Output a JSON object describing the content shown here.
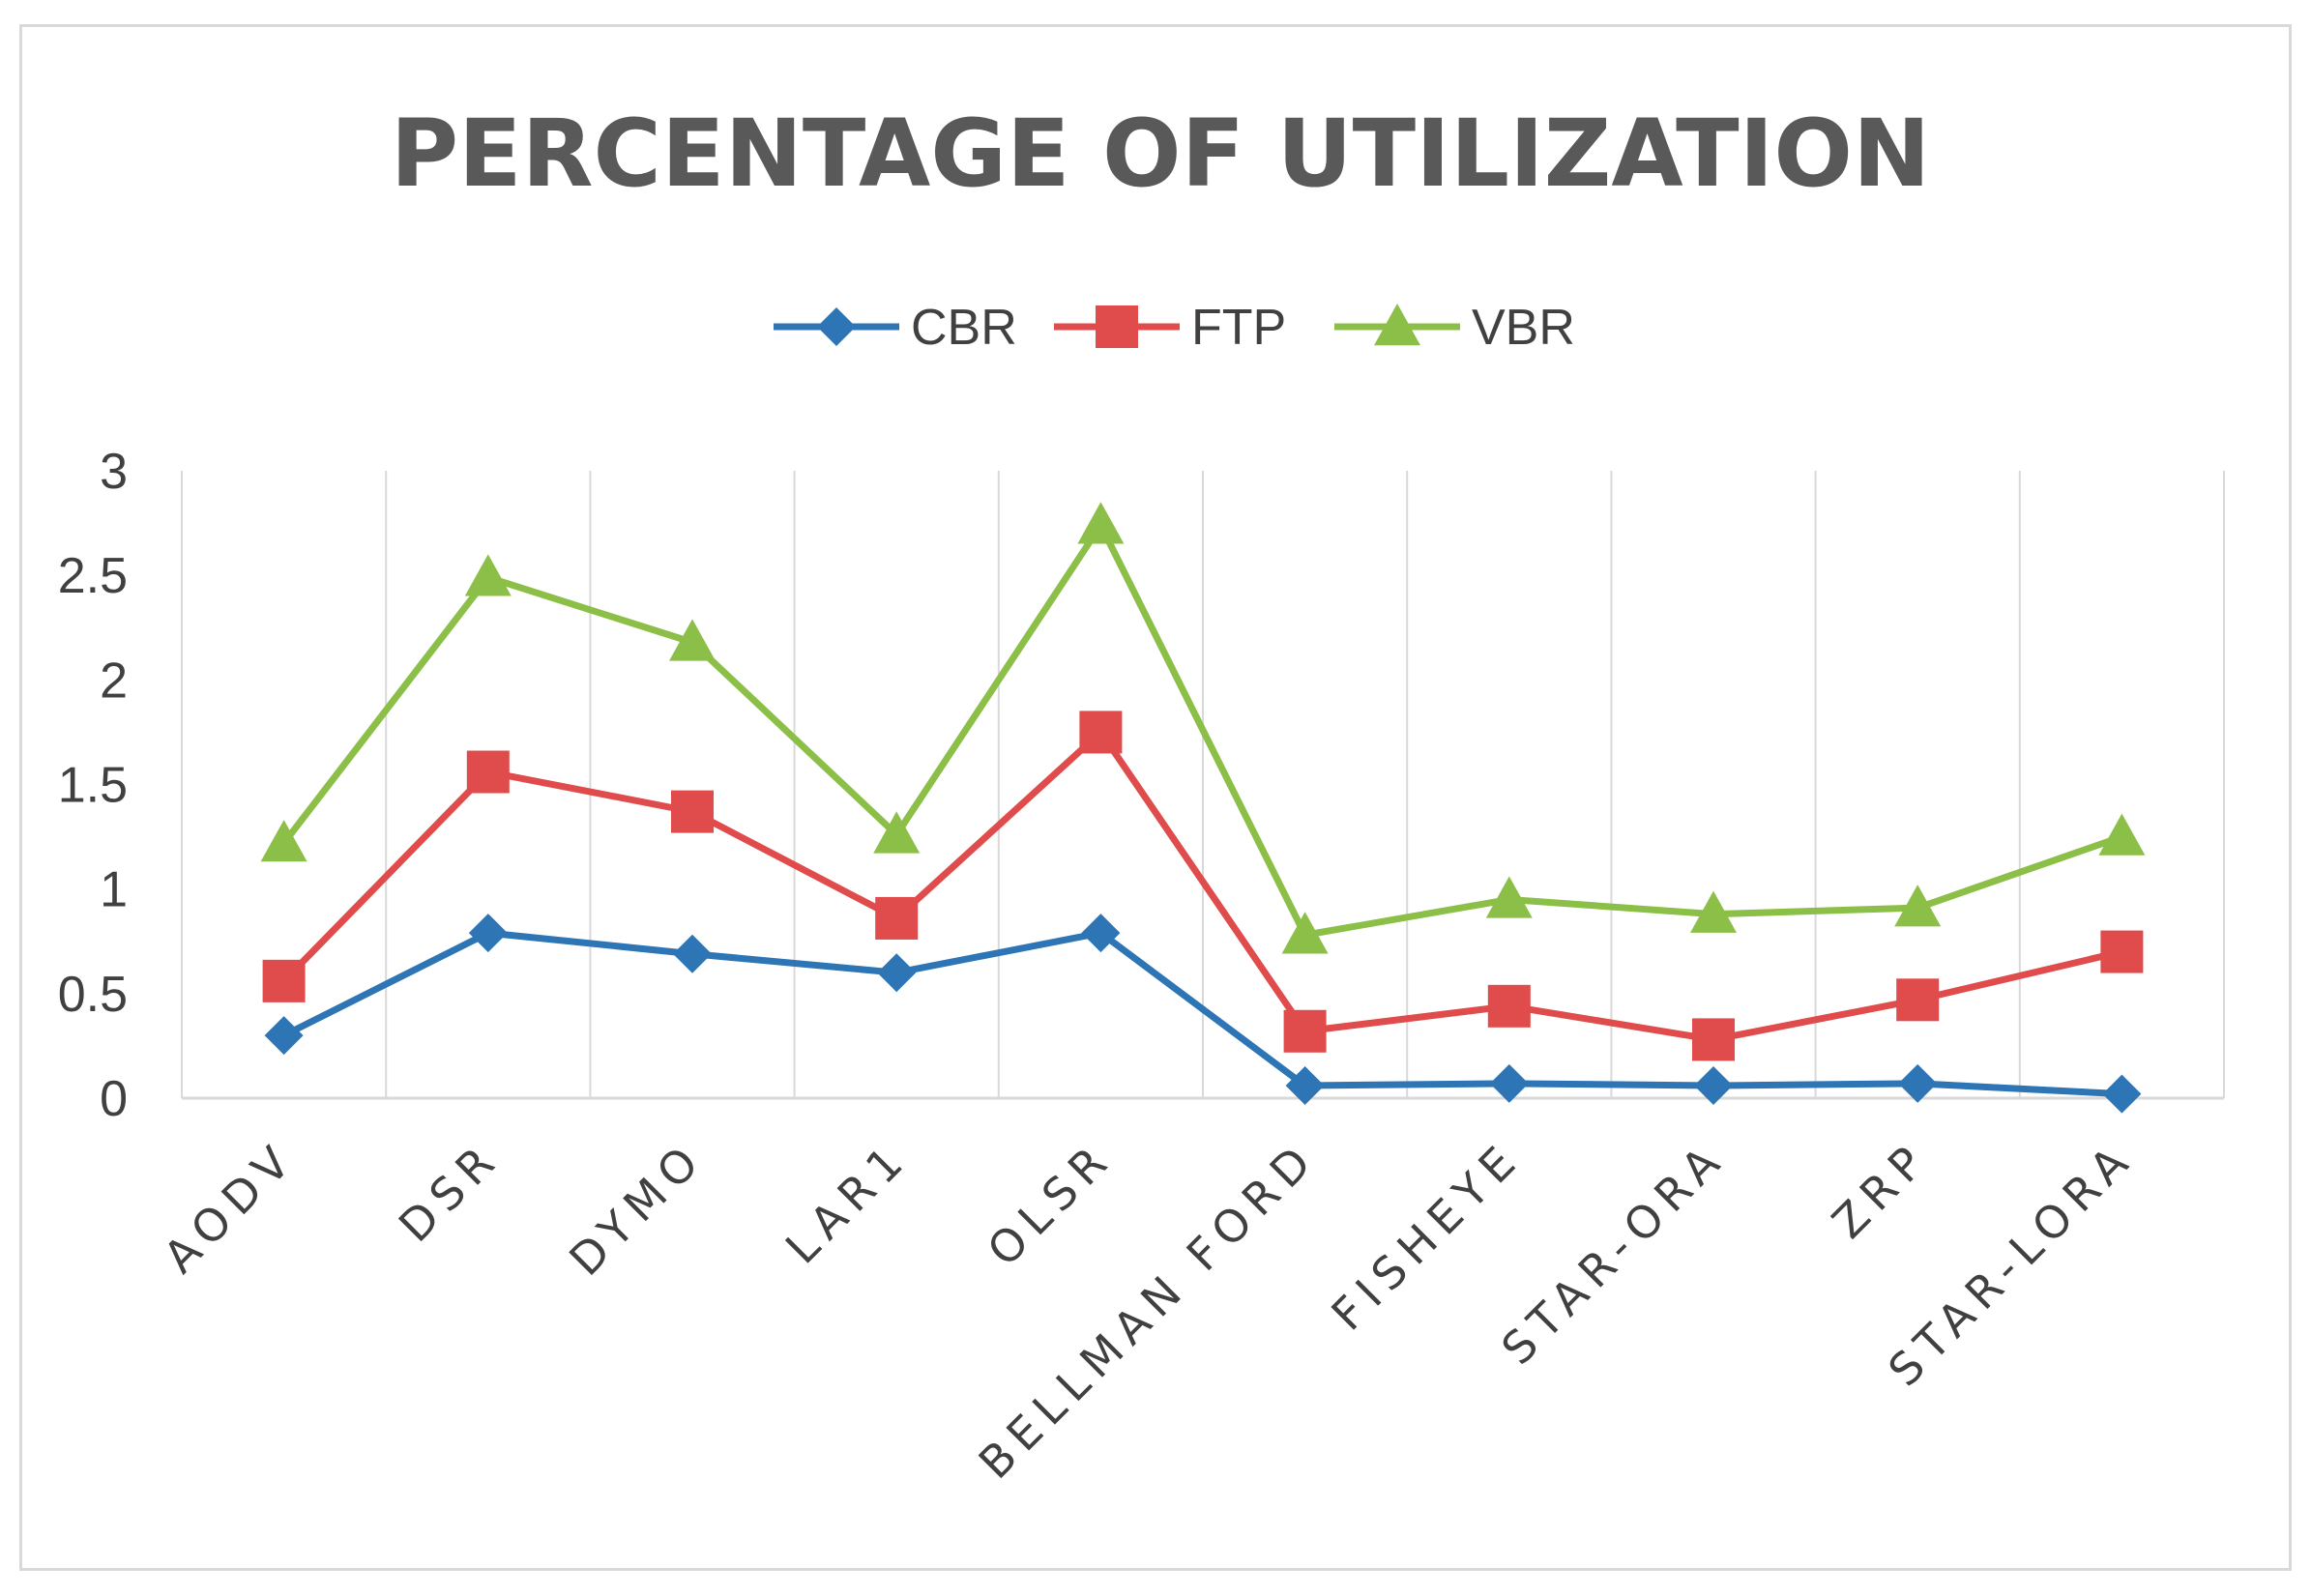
{
  "chart_data": {
    "type": "line",
    "title": "PERCENTAGE  OF UTILIZATION",
    "xlabel": "",
    "ylabel": "",
    "categories": [
      "AODV",
      "DSR",
      "DYMO",
      "LAR1",
      "OLSR",
      "BELLMAN FORD",
      "FISHEYE",
      "STAR-ORA",
      "ZRP",
      "STAR-LORA"
    ],
    "series": [
      {
        "name": "CBR",
        "color": "#2e75b6",
        "marker": "diamond",
        "values": [
          0.3,
          0.79,
          0.69,
          0.6,
          0.79,
          0.06,
          0.07,
          0.06,
          0.07,
          0.02
        ]
      },
      {
        "name": "FTP",
        "color": "#e04b4b",
        "marker": "square",
        "values": [
          0.56,
          1.56,
          1.37,
          0.86,
          1.75,
          0.32,
          0.44,
          0.28,
          0.47,
          0.7
        ]
      },
      {
        "name": "VBR",
        "color": "#8cbf47",
        "marker": "triangle",
        "values": [
          1.22,
          2.49,
          2.18,
          1.26,
          2.74,
          0.78,
          0.95,
          0.88,
          0.91,
          1.25
        ]
      }
    ],
    "ylim": [
      0,
      3
    ],
    "yticks": [
      0,
      0.5,
      1,
      1.5,
      2,
      2.5,
      3
    ],
    "ytick_labels": [
      "0",
      "0.5",
      "1",
      "1.5",
      "2",
      "2.5",
      "3"
    ],
    "grid": "vertical",
    "legend": "top-center"
  }
}
